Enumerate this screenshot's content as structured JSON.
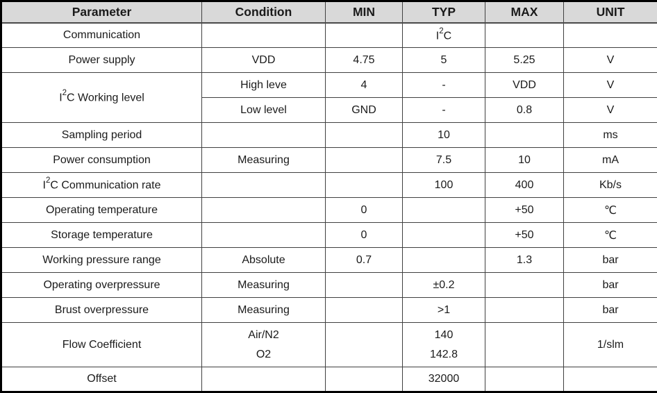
{
  "colors": {
    "header_bg": "#d9d9d9",
    "grid_line": "#404040",
    "outer_border": "#000000",
    "text": "#1a1a1a"
  },
  "table": {
    "columns": [
      {
        "label": "Parameter"
      },
      {
        "label": "Condition"
      },
      {
        "label": "MIN"
      },
      {
        "label": "TYP"
      },
      {
        "label": "MAX"
      },
      {
        "label": "UNIT"
      }
    ],
    "rows": [
      {
        "cells": [
          {
            "text": "Communication"
          },
          {
            "text": ""
          },
          {
            "text": ""
          },
          {
            "text": "I²C"
          },
          {
            "text": ""
          },
          {
            "text": ""
          }
        ]
      },
      {
        "cells": [
          {
            "text": "Power supply"
          },
          {
            "text": "VDD"
          },
          {
            "text": "4.75"
          },
          {
            "text": "5"
          },
          {
            "text": "5.25"
          },
          {
            "text": "V"
          }
        ]
      },
      {
        "cells": [
          {
            "text": "I²C Working level",
            "rowspan": 2
          },
          {
            "text": "High leve"
          },
          {
            "text": "4"
          },
          {
            "text": "-"
          },
          {
            "text": "VDD"
          },
          {
            "text": "V"
          }
        ]
      },
      {
        "cells": [
          {
            "text": "Low level"
          },
          {
            "text": "GND"
          },
          {
            "text": "-"
          },
          {
            "text": "0.8"
          },
          {
            "text": "V"
          }
        ]
      },
      {
        "cells": [
          {
            "text": "Sampling period"
          },
          {
            "text": ""
          },
          {
            "text": ""
          },
          {
            "text": "10"
          },
          {
            "text": ""
          },
          {
            "text": "ms"
          }
        ]
      },
      {
        "cells": [
          {
            "text": "Power consumption"
          },
          {
            "text": "Measuring"
          },
          {
            "text": ""
          },
          {
            "text": "7.5"
          },
          {
            "text": "10"
          },
          {
            "text": "mA"
          }
        ]
      },
      {
        "cells": [
          {
            "text": "I²C Communication rate"
          },
          {
            "text": ""
          },
          {
            "text": ""
          },
          {
            "text": "100"
          },
          {
            "text": "400"
          },
          {
            "text": "Kb/s"
          }
        ]
      },
      {
        "cells": [
          {
            "text": "Operating temperature"
          },
          {
            "text": ""
          },
          {
            "text": "0"
          },
          {
            "text": ""
          },
          {
            "text": "+50"
          },
          {
            "text": "℃"
          }
        ]
      },
      {
        "cells": [
          {
            "text": "Storage temperature"
          },
          {
            "text": ""
          },
          {
            "text": "0"
          },
          {
            "text": ""
          },
          {
            "text": "+50"
          },
          {
            "text": "℃"
          }
        ]
      },
      {
        "cells": [
          {
            "text": "Working pressure range"
          },
          {
            "text": "Absolute"
          },
          {
            "text": "0.7"
          },
          {
            "text": ""
          },
          {
            "text": "1.3"
          },
          {
            "text": "bar"
          }
        ]
      },
      {
        "cells": [
          {
            "text": "Operating overpressure"
          },
          {
            "text": "Measuring"
          },
          {
            "text": ""
          },
          {
            "text": "±0.2"
          },
          {
            "text": ""
          },
          {
            "text": "bar"
          }
        ]
      },
      {
        "cells": [
          {
            "text": "Brust overpressure"
          },
          {
            "text": "Measuring"
          },
          {
            "text": ""
          },
          {
            "text": ">1"
          },
          {
            "text": ""
          },
          {
            "text": "bar"
          }
        ]
      },
      {
        "cells": [
          {
            "text": "Flow Coefficient"
          },
          {
            "text": "Air/N2\nO2"
          },
          {
            "text": ""
          },
          {
            "text": "140\n142.8"
          },
          {
            "text": ""
          },
          {
            "text": "1/slm"
          }
        ]
      },
      {
        "cells": [
          {
            "text": "Offset"
          },
          {
            "text": ""
          },
          {
            "text": ""
          },
          {
            "text": "32000"
          },
          {
            "text": ""
          },
          {
            "text": ""
          }
        ]
      }
    ]
  }
}
